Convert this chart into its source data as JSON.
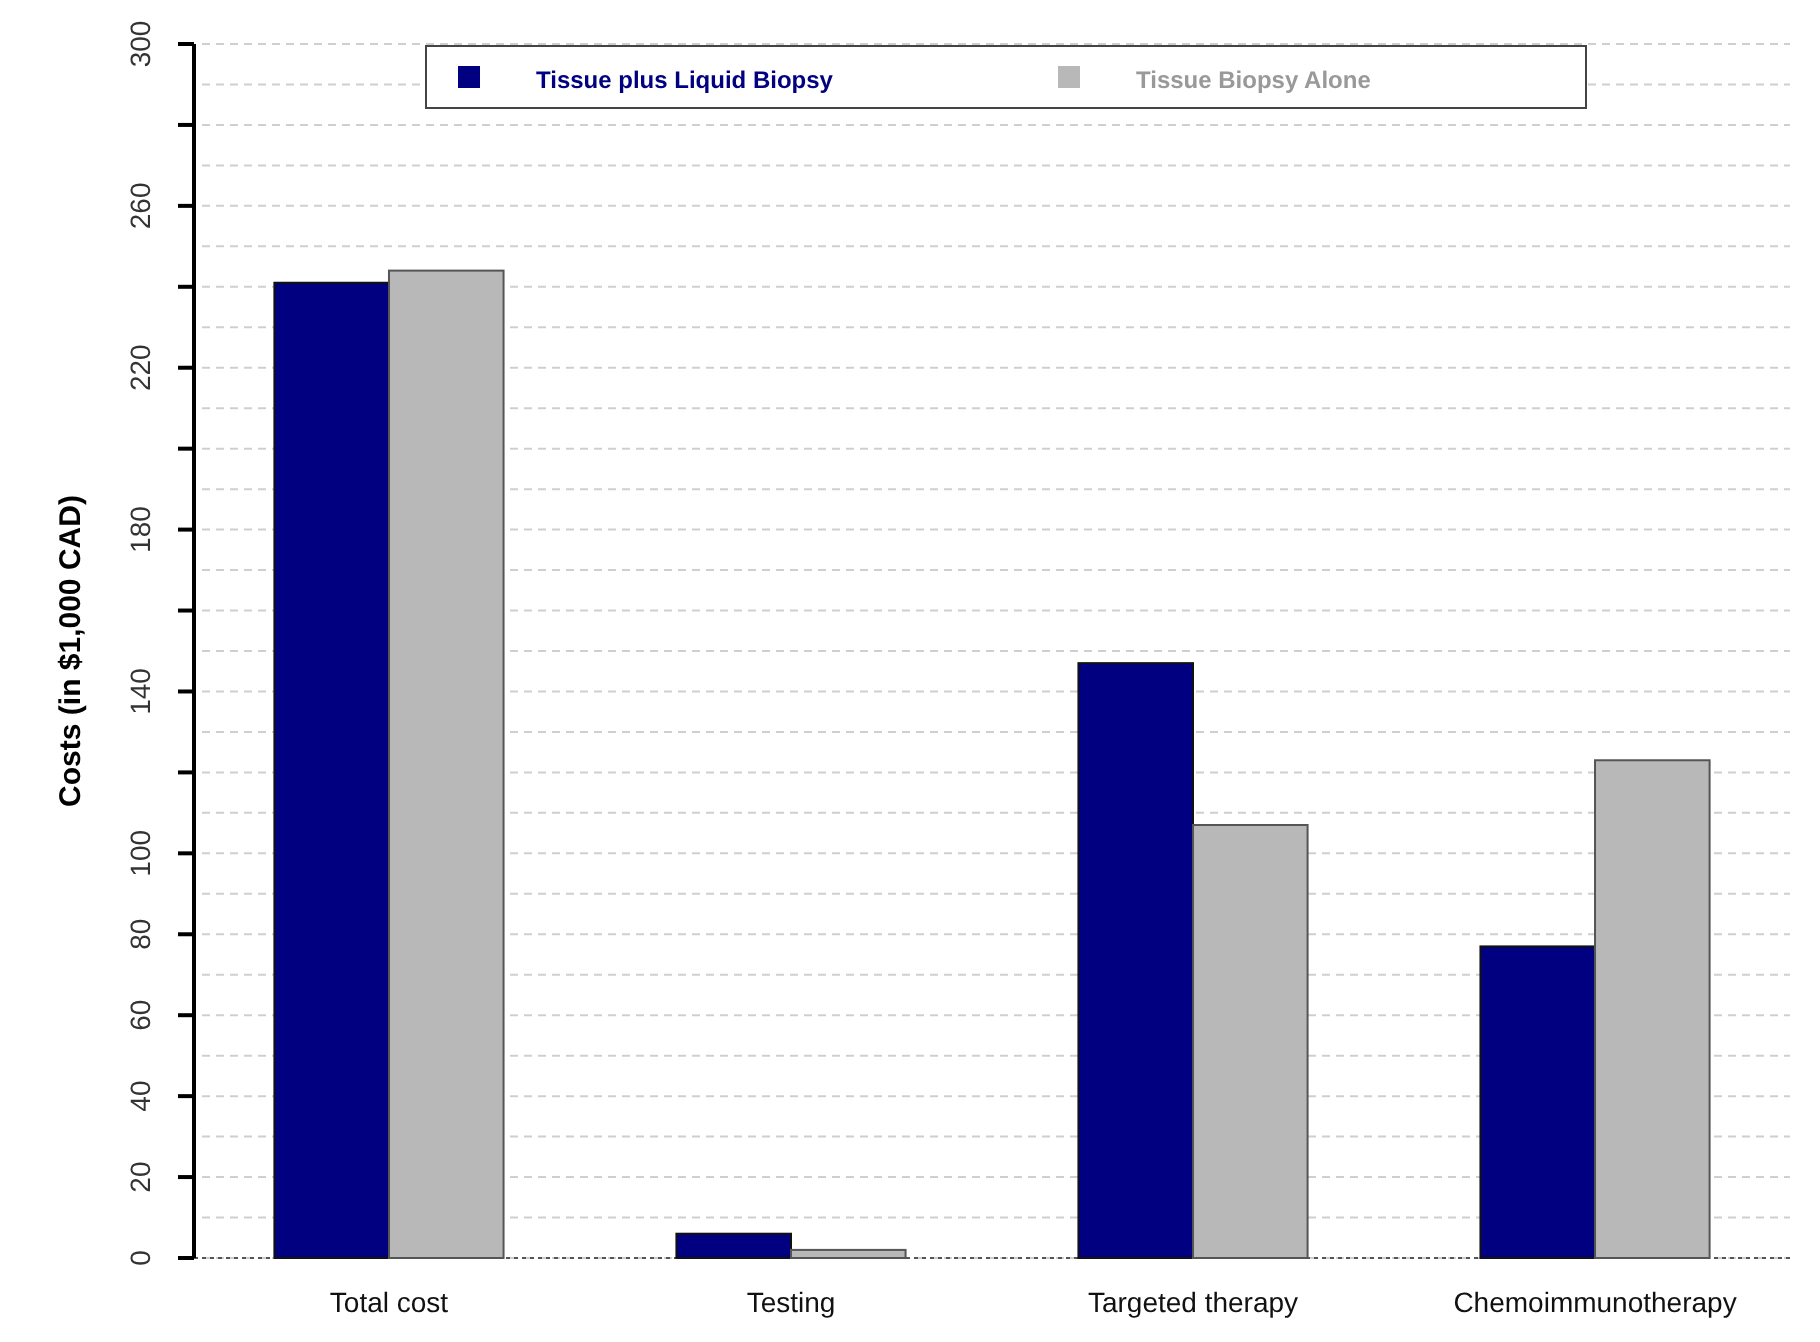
{
  "chart_data": {
    "type": "bar",
    "ylabel": "Costs (in $1,000 CAD)",
    "categories": [
      "Total cost",
      "Testing",
      "Targeted therapy",
      "Chemoimmunotherapy"
    ],
    "series": [
      {
        "name": "Tissue plus Liquid Biopsy",
        "color": "#000080",
        "values": [
          241,
          6,
          147,
          77
        ]
      },
      {
        "name": "Tissue Biopsy Alone",
        "color": "#b8b8b8",
        "values": [
          244,
          2,
          107,
          123
        ]
      }
    ],
    "ylim": [
      0,
      300
    ],
    "yticks": [
      0,
      20,
      40,
      60,
      80,
      100,
      {
        "value": 120,
        "label": null
      },
      140,
      {
        "value": 160,
        "label": null
      },
      180,
      {
        "value": 200,
        "label": null
      },
      220,
      {
        "value": 240,
        "label": null
      },
      260,
      {
        "value": 280,
        "label": null
      },
      300
    ],
    "grid": "y",
    "legend": "top"
  }
}
